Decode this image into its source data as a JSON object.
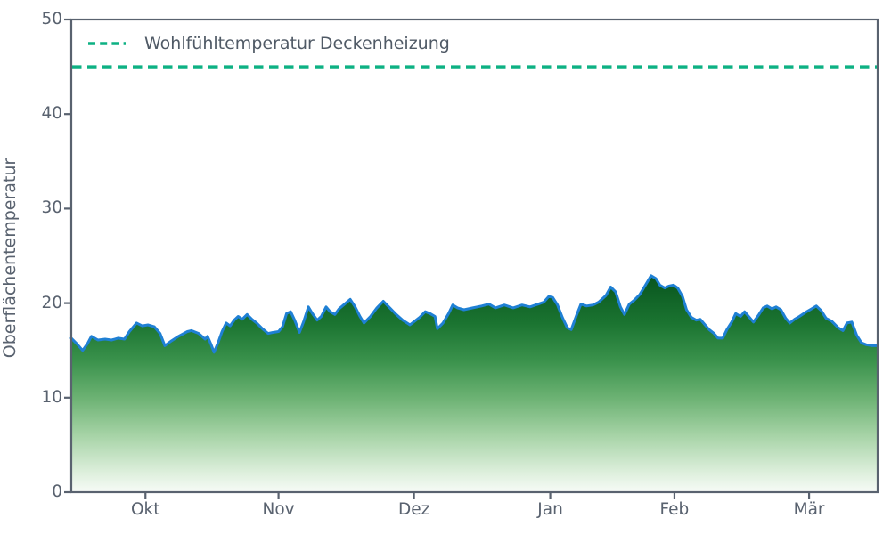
{
  "chart_data": {
    "type": "area",
    "title": "",
    "xlabel": "",
    "ylabel": "Oberflächentemperatur",
    "ylim": [
      0,
      50
    ],
    "yticks": [
      0,
      10,
      20,
      30,
      40,
      50
    ],
    "xticks": [
      {
        "label": "Okt",
        "pos": 9.2
      },
      {
        "label": "Nov",
        "pos": 25.7
      },
      {
        "label": "Dez",
        "pos": 42.5
      },
      {
        "label": "Jan",
        "pos": 59.4
      },
      {
        "label": "Feb",
        "pos": 74.8
      },
      {
        "label": "Mär",
        "pos": 91.5
      }
    ],
    "grid": false,
    "legend_position": "upper left",
    "reference_line": {
      "label": "Wohlfühltemperatur Deckenheizung",
      "value": 45,
      "color": "#0db183",
      "style": "dashed"
    },
    "colors": {
      "axis": "#59626f",
      "line": "#1f80d4",
      "gradient_stops": [
        [
          0.0,
          "#07531d"
        ],
        [
          0.23,
          "#1b7431"
        ],
        [
          0.4,
          "#3a924c"
        ],
        [
          0.57,
          "#6cb273"
        ],
        [
          0.74,
          "#a6d3a6"
        ],
        [
          0.91,
          "#ddefdc"
        ],
        [
          1.0,
          "#f7fbf7"
        ]
      ]
    },
    "series": [
      {
        "name": "Oberflächentemperatur",
        "x_unit": "percent of season (Mitte Sep – Mitte Mär)",
        "y_unit": "°C",
        "points": [
          [
            0,
            16.3
          ],
          [
            0.7,
            15.7
          ],
          [
            1.4,
            15.0
          ],
          [
            2.0,
            15.7
          ],
          [
            2.5,
            16.5
          ],
          [
            3.3,
            16.1
          ],
          [
            4.2,
            16.2
          ],
          [
            5.0,
            16.1
          ],
          [
            5.8,
            16.3
          ],
          [
            6.6,
            16.2
          ],
          [
            7.2,
            17.0
          ],
          [
            8.1,
            17.9
          ],
          [
            8.8,
            17.6
          ],
          [
            9.5,
            17.7
          ],
          [
            10.3,
            17.5
          ],
          [
            11.0,
            16.8
          ],
          [
            11.6,
            15.5
          ],
          [
            12.4,
            16.0
          ],
          [
            13.3,
            16.5
          ],
          [
            14.4,
            17.0
          ],
          [
            14.9,
            17.1
          ],
          [
            15.8,
            16.8
          ],
          [
            16.6,
            16.2
          ],
          [
            16.9,
            16.5
          ],
          [
            17.3,
            15.7
          ],
          [
            17.7,
            14.8
          ],
          [
            18.2,
            15.8
          ],
          [
            18.7,
            17.0
          ],
          [
            19.2,
            17.9
          ],
          [
            19.7,
            17.6
          ],
          [
            20.2,
            18.2
          ],
          [
            20.7,
            18.6
          ],
          [
            21.2,
            18.3
          ],
          [
            21.8,
            18.8
          ],
          [
            22.4,
            18.3
          ],
          [
            23.0,
            17.9
          ],
          [
            23.7,
            17.3
          ],
          [
            24.4,
            16.8
          ],
          [
            25.0,
            16.9
          ],
          [
            25.7,
            17.0
          ],
          [
            26.2,
            17.5
          ],
          [
            26.7,
            18.9
          ],
          [
            27.2,
            19.1
          ],
          [
            27.7,
            18.2
          ],
          [
            28.3,
            16.9
          ],
          [
            28.8,
            18.0
          ],
          [
            29.4,
            19.6
          ],
          [
            29.9,
            18.9
          ],
          [
            30.5,
            18.2
          ],
          [
            31.0,
            18.6
          ],
          [
            31.6,
            19.6
          ],
          [
            32.1,
            19.1
          ],
          [
            32.7,
            18.8
          ],
          [
            33.2,
            19.4
          ],
          [
            33.9,
            19.9
          ],
          [
            34.6,
            20.4
          ],
          [
            35.2,
            19.6
          ],
          [
            35.8,
            18.6
          ],
          [
            36.3,
            17.9
          ],
          [
            37.1,
            18.6
          ],
          [
            37.9,
            19.5
          ],
          [
            38.7,
            20.2
          ],
          [
            39.5,
            19.5
          ],
          [
            40.3,
            18.8
          ],
          [
            41.1,
            18.2
          ],
          [
            42.0,
            17.7
          ],
          [
            42.6,
            18.1
          ],
          [
            43.2,
            18.5
          ],
          [
            43.9,
            19.1
          ],
          [
            44.5,
            18.9
          ],
          [
            45.1,
            18.6
          ],
          [
            45.4,
            17.3
          ],
          [
            46.1,
            17.9
          ],
          [
            46.8,
            18.9
          ],
          [
            47.3,
            19.8
          ],
          [
            47.9,
            19.5
          ],
          [
            48.7,
            19.3
          ],
          [
            49.8,
            19.5
          ],
          [
            50.9,
            19.7
          ],
          [
            51.8,
            19.9
          ],
          [
            52.6,
            19.5
          ],
          [
            53.7,
            19.8
          ],
          [
            54.8,
            19.5
          ],
          [
            55.9,
            19.8
          ],
          [
            56.9,
            19.6
          ],
          [
            57.9,
            19.9
          ],
          [
            58.6,
            20.1
          ],
          [
            59.2,
            20.7
          ],
          [
            59.7,
            20.6
          ],
          [
            60.3,
            19.8
          ],
          [
            60.9,
            18.5
          ],
          [
            61.5,
            17.4
          ],
          [
            62.0,
            17.2
          ],
          [
            62.7,
            18.8
          ],
          [
            63.2,
            19.9
          ],
          [
            63.9,
            19.7
          ],
          [
            64.7,
            19.8
          ],
          [
            65.4,
            20.1
          ],
          [
            66.3,
            20.8
          ],
          [
            66.9,
            21.7
          ],
          [
            67.5,
            21.2
          ],
          [
            68.1,
            19.6
          ],
          [
            68.6,
            18.8
          ],
          [
            69.2,
            19.9
          ],
          [
            69.8,
            20.3
          ],
          [
            70.5,
            20.9
          ],
          [
            71.2,
            21.9
          ],
          [
            71.9,
            22.9
          ],
          [
            72.5,
            22.6
          ],
          [
            73.0,
            21.9
          ],
          [
            73.6,
            21.6
          ],
          [
            74.1,
            21.8
          ],
          [
            74.7,
            21.9
          ],
          [
            75.2,
            21.6
          ],
          [
            75.8,
            20.7
          ],
          [
            76.3,
            19.3
          ],
          [
            76.9,
            18.5
          ],
          [
            77.5,
            18.2
          ],
          [
            78.0,
            18.3
          ],
          [
            78.6,
            17.7
          ],
          [
            79.1,
            17.2
          ],
          [
            79.7,
            16.8
          ],
          [
            80.2,
            16.3
          ],
          [
            80.8,
            16.3
          ],
          [
            81.3,
            17.2
          ],
          [
            81.9,
            18.0
          ],
          [
            82.4,
            18.9
          ],
          [
            83.0,
            18.6
          ],
          [
            83.5,
            19.1
          ],
          [
            84.0,
            18.6
          ],
          [
            84.6,
            18.0
          ],
          [
            85.2,
            18.7
          ],
          [
            85.8,
            19.5
          ],
          [
            86.3,
            19.7
          ],
          [
            86.9,
            19.4
          ],
          [
            87.4,
            19.6
          ],
          [
            88.0,
            19.3
          ],
          [
            88.6,
            18.4
          ],
          [
            89.1,
            17.9
          ],
          [
            89.7,
            18.3
          ],
          [
            90.3,
            18.6
          ],
          [
            91.0,
            19.0
          ],
          [
            91.8,
            19.4
          ],
          [
            92.4,
            19.7
          ],
          [
            93.0,
            19.2
          ],
          [
            93.6,
            18.4
          ],
          [
            94.3,
            18.1
          ],
          [
            95.1,
            17.4
          ],
          [
            95.7,
            17.1
          ],
          [
            96.2,
            17.9
          ],
          [
            96.8,
            18.0
          ],
          [
            97.4,
            16.6
          ],
          [
            98.0,
            15.8
          ],
          [
            98.6,
            15.6
          ],
          [
            99.3,
            15.5
          ],
          [
            100,
            15.5
          ]
        ]
      }
    ]
  }
}
